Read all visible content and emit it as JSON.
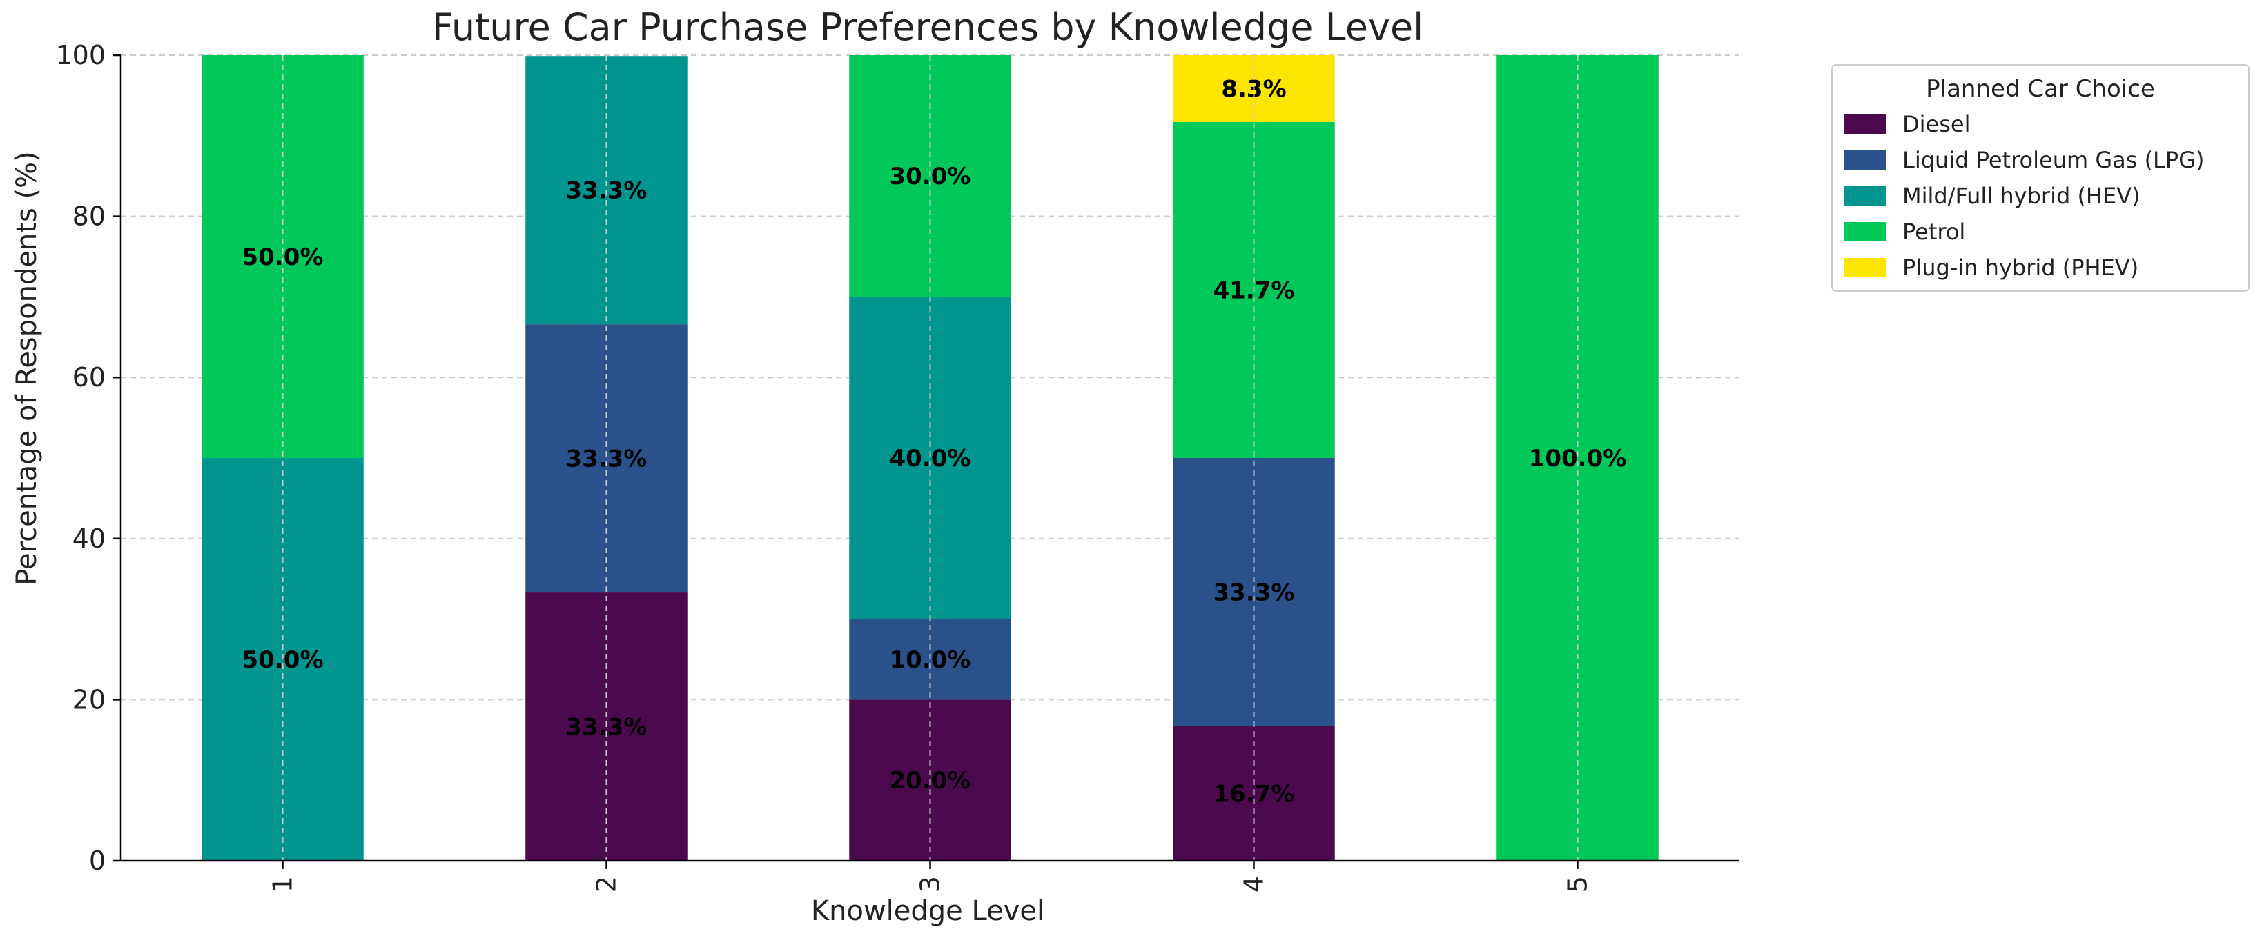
{
  "chart_data": {
    "type": "bar",
    "stacked": true,
    "title": "Future Car Purchase Preferences by Knowledge Level",
    "xlabel": "Knowledge Level",
    "ylabel": "Percentage of Respondents (%)",
    "ylim": [
      0,
      100
    ],
    "yticks": [
      "0",
      "20",
      "40",
      "60",
      "80",
      "100"
    ],
    "categories": [
      "1",
      "2",
      "3",
      "4",
      "5"
    ],
    "grid": true,
    "legend": {
      "title": "Planned Car Choice",
      "placement": "outside-top-right"
    },
    "series": [
      {
        "name": "Diesel",
        "color": "#4b0a4e",
        "values": [
          0,
          33.3,
          20.0,
          16.7,
          0
        ],
        "labels": [
          "",
          "33.3%",
          "20.0%",
          "16.7%",
          ""
        ]
      },
      {
        "name": "Liquid Petroleum Gas (LPG)",
        "color": "#2b518b",
        "values": [
          0,
          33.3,
          10.0,
          33.3,
          0
        ],
        "labels": [
          "",
          "33.3%",
          "10.0%",
          "33.3%",
          ""
        ]
      },
      {
        "name": "Mild/Full hybrid (HEV)",
        "color": "#00968f",
        "values": [
          50.0,
          33.3,
          40.0,
          0,
          0
        ],
        "labels": [
          "50.0%",
          "33.3%",
          "40.0%",
          "",
          ""
        ]
      },
      {
        "name": "Petrol",
        "color": "#00c95a",
        "values": [
          50.0,
          0,
          30.0,
          41.7,
          100.0
        ],
        "labels": [
          "50.0%",
          "",
          "30.0%",
          "41.7%",
          "100.0%"
        ]
      },
      {
        "name": "Plug-in hybrid (PHEV)",
        "color": "#fce500",
        "values": [
          0,
          0,
          0,
          8.3,
          0
        ],
        "labels": [
          "",
          "",
          "",
          "8.3%",
          ""
        ]
      }
    ]
  }
}
